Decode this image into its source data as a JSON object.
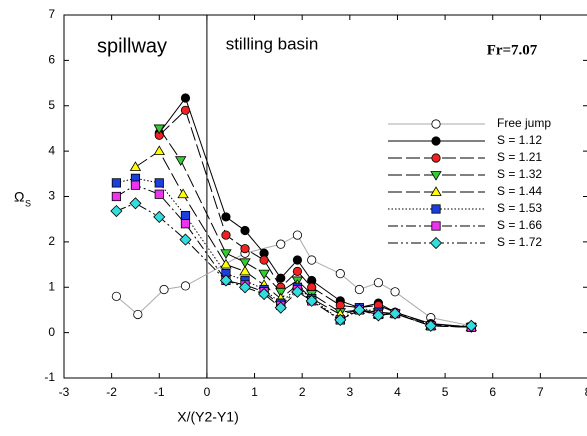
{
  "chart_data": {
    "type": "line",
    "xlabel": "X/(Y2-Y1)",
    "ylabel": "Ω",
    "ylabel_sub": "S",
    "annotations": [
      "spillway",
      "stilling basin",
      "Fr=7.07"
    ],
    "divider_x": 0,
    "xlim": [
      -3,
      8
    ],
    "ylim": [
      -1,
      7
    ],
    "xticks": [
      -3,
      -2,
      -1,
      0,
      1,
      2,
      3,
      4,
      5,
      6,
      7,
      8
    ],
    "yticks": [
      -1,
      0,
      1,
      2,
      3,
      4,
      5,
      6,
      7
    ],
    "legend": "upper right",
    "series": [
      {
        "name": "Free jump",
        "color": "#aaaaaa",
        "marker": "circle",
        "marker_fill": "#ffffff",
        "dash": "solid",
        "x": [
          -1.9,
          -1.45,
          -0.9,
          -0.45,
          0.8,
          1.55,
          1.9,
          2.2,
          2.8,
          3.2,
          3.6,
          3.95,
          4.7,
          5.55
        ],
        "values": [
          0.8,
          0.4,
          0.95,
          1.03,
          1.75,
          1.95,
          2.15,
          1.6,
          1.3,
          0.95,
          1.1,
          0.9,
          0.33,
          0.15
        ]
      },
      {
        "name": "S = 1.12",
        "color": "#000000",
        "marker": "circle",
        "marker_fill": "#000000",
        "dash": "solid",
        "x": [
          -1.0,
          -0.45,
          0.4,
          0.8,
          1.2,
          1.55,
          1.9,
          2.2,
          2.8,
          3.2,
          3.6,
          3.95,
          4.7,
          5.55
        ],
        "values": [
          4.4,
          5.17,
          2.55,
          2.25,
          1.75,
          1.2,
          1.6,
          1.15,
          0.7,
          0.55,
          0.65,
          0.45,
          0.2,
          0.12
        ]
      },
      {
        "name": "S = 1.21",
        "color": "#000000",
        "marker": "circle",
        "marker_fill": "#ee2222",
        "dash": "longdash",
        "x": [
          -1.0,
          -0.45,
          0.4,
          0.8,
          1.2,
          1.55,
          1.9,
          2.2,
          2.8,
          3.2,
          3.6,
          3.95,
          4.7,
          5.55
        ],
        "values": [
          4.35,
          4.9,
          2.15,
          1.85,
          1.6,
          1.0,
          1.35,
          1.0,
          0.6,
          0.55,
          0.6,
          0.45,
          0.18,
          0.12
        ]
      },
      {
        "name": "S = 1.32",
        "color": "#000000",
        "marker": "triangle-down",
        "marker_fill": "#33cc33",
        "dash": "longdash",
        "x": [
          -1.0,
          -0.55,
          0.4,
          0.8,
          1.2,
          1.55,
          1.9,
          2.2,
          2.8,
          3.2,
          3.6,
          3.95,
          4.7,
          5.55
        ],
        "values": [
          4.5,
          3.8,
          1.75,
          1.55,
          1.3,
          0.9,
          1.15,
          0.85,
          0.45,
          0.5,
          0.45,
          0.42,
          0.15,
          0.12
        ]
      },
      {
        "name": "S = 1.44",
        "color": "#000000",
        "marker": "triangle-up",
        "marker_fill": "#ffff00",
        "dash": "longdash",
        "x": [
          -1.5,
          -1.0,
          -0.5,
          0.4,
          0.8,
          1.2,
          1.55,
          1.9,
          2.2,
          2.8,
          3.2,
          3.6,
          3.95,
          4.7,
          5.55
        ],
        "values": [
          3.65,
          4.0,
          3.05,
          1.5,
          1.35,
          1.05,
          0.75,
          1.05,
          0.75,
          0.4,
          0.5,
          0.4,
          0.42,
          0.15,
          0.12
        ]
      },
      {
        "name": "S = 1.53",
        "color": "#000000",
        "marker": "square",
        "marker_fill": "#1a3fdd",
        "dash": "dotted",
        "x": [
          -1.9,
          -1.5,
          -1.0,
          -0.45,
          0.4,
          0.8,
          1.2,
          1.55,
          1.9,
          2.2,
          2.8,
          3.2,
          3.6,
          3.95,
          4.7,
          5.55
        ],
        "values": [
          3.3,
          3.4,
          3.3,
          2.58,
          1.3,
          1.15,
          0.95,
          0.65,
          1.0,
          0.75,
          0.28,
          0.55,
          0.45,
          0.42,
          0.15,
          0.12
        ]
      },
      {
        "name": "S = 1.66",
        "color": "#000000",
        "marker": "square",
        "marker_fill": "#ee33ee",
        "dash": "dashdot",
        "x": [
          -1.9,
          -1.5,
          -1.0,
          -0.45,
          0.4,
          0.8,
          1.2,
          1.55,
          1.9,
          2.2,
          2.8,
          3.2,
          3.6,
          3.95,
          4.7,
          5.55
        ],
        "values": [
          3.0,
          3.25,
          3.05,
          2.4,
          1.15,
          1.05,
          0.9,
          0.6,
          0.95,
          0.7,
          0.28,
          0.5,
          0.4,
          0.42,
          0.15,
          0.12
        ]
      },
      {
        "name": "S = 1.72",
        "color": "#000000",
        "marker": "diamond",
        "marker_fill": "#33dddd",
        "dash": "dashdotdot",
        "x": [
          -1.9,
          -1.5,
          -1.0,
          -0.45,
          0.4,
          0.8,
          1.2,
          1.55,
          1.9,
          2.2,
          2.8,
          3.2,
          3.6,
          3.95,
          4.7,
          5.55
        ],
        "values": [
          2.68,
          2.85,
          2.55,
          2.05,
          1.15,
          1.0,
          0.85,
          0.55,
          0.9,
          0.7,
          0.28,
          0.5,
          0.38,
          0.42,
          0.15,
          0.15
        ]
      }
    ]
  }
}
